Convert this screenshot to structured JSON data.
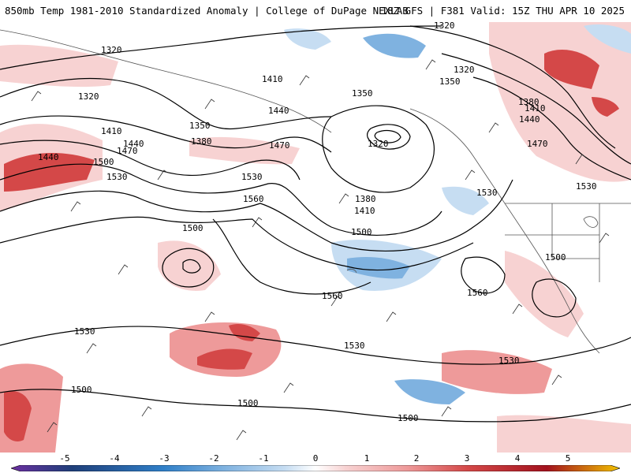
{
  "header": {
    "title": "850mb Temp 1981-2010 Standardized Anomaly | College of DuPage NEXLAB",
    "run": "18Z GFS | F381 Valid: 15Z THU APR 10 2025"
  },
  "colors": {
    "neg5": "#6b2fa0",
    "neg4": "#1f3f7a",
    "neg3": "#2f7fc8",
    "neg2": "#7fb2e0",
    "neg1": "#c6ddf2",
    "pos1": "#f7d2d2",
    "pos2": "#ee9a9a",
    "pos3": "#d44848",
    "pos4": "#a3121e",
    "pos5": "#f2c200"
  },
  "contour_labels": [
    "1320",
    "1320",
    "1320",
    "1320",
    "1320",
    "1350",
    "1350",
    "1350",
    "1380",
    "1380",
    "1380",
    "1410",
    "1410",
    "1410",
    "1410",
    "1440",
    "1440",
    "1440",
    "1440",
    "1470",
    "1470",
    "1470",
    "1500",
    "1500",
    "1500",
    "1500",
    "1500",
    "1500",
    "1500",
    "1530",
    "1530",
    "1530",
    "1530",
    "1530",
    "1530",
    "1530",
    "1560",
    "1560",
    "1560"
  ],
  "legend": {
    "ticks": [
      "-5",
      "-4",
      "-3",
      "-2",
      "-1",
      "0",
      "1",
      "2",
      "3",
      "4",
      "5"
    ]
  }
}
